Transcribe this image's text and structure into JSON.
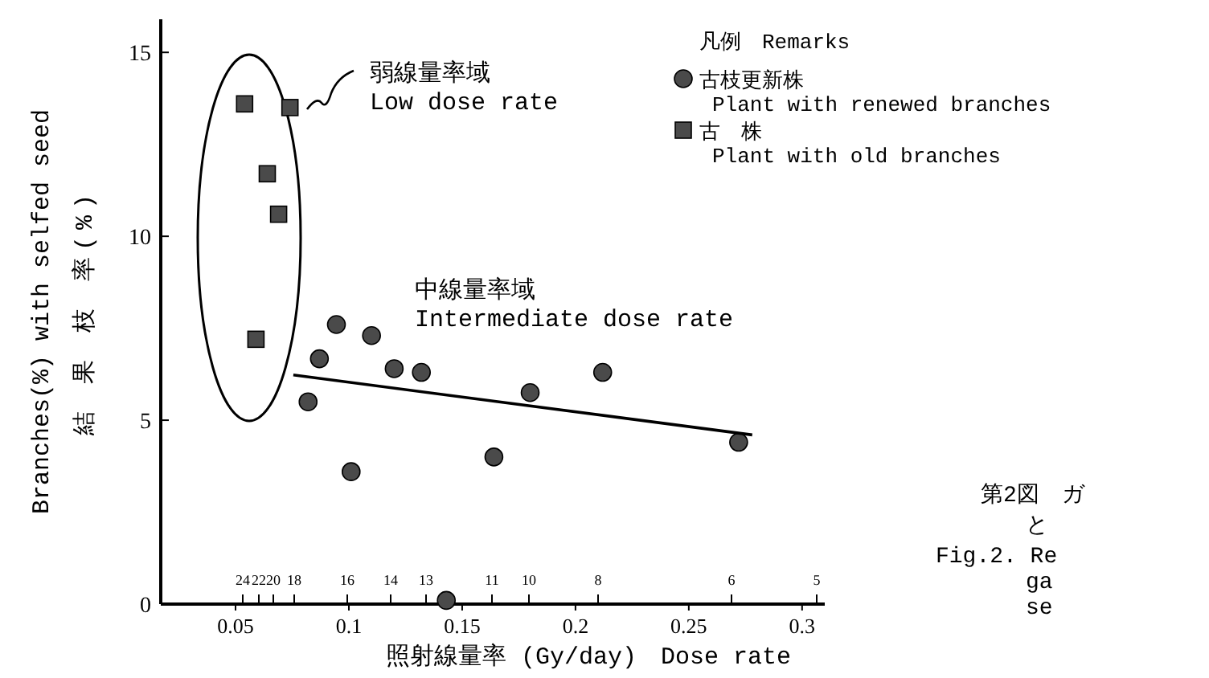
{
  "chart_data": {
    "type": "scatter",
    "xlabel": "照射線量率 (Gy/day)　Dose rate",
    "ylabel": "Branches(%) with selfed seed\n結 果 枝 率(%)",
    "legend_title": "凡例　Remarks",
    "legend": "top right",
    "grid": false,
    "xlim": [
      0.017,
      0.31
    ],
    "ylim": [
      0,
      15.9
    ],
    "xticks": [
      0.05,
      0.1,
      0.15,
      0.2,
      0.25,
      0.3
    ],
    "yticks": [
      0,
      5,
      10,
      15
    ],
    "series": [
      {
        "name": "古枝更新株\nPlant with renewed branches",
        "type": "scatter",
        "marker": "circle",
        "color": "#4a4a4a",
        "x": [
          0.082,
          0.087,
          0.0945,
          0.101,
          0.11,
          0.12,
          0.132,
          0.143,
          0.164,
          0.18,
          0.212,
          0.272
        ],
        "values": [
          5.5,
          6.67,
          7.6,
          3.6,
          7.3,
          6.4,
          6.3,
          0.1,
          4.0,
          5.75,
          6.3,
          4.4
        ]
      },
      {
        "name": "古　株\nPlant with old branches",
        "type": "scatter",
        "marker": "square",
        "color": "#4a4a4a",
        "x": [
          0.054,
          0.059,
          0.064,
          0.069,
          0.074
        ],
        "values": [
          13.6,
          7.2,
          11.7,
          10.6,
          13.5
        ]
      },
      {
        "type": "line",
        "color": "#000000",
        "line_style": "solid",
        "x": [
          0.0755,
          0.278
        ],
        "values": [
          6.23,
          4.6
        ]
      }
    ],
    "annotations": [
      "弱線量率域\nLow dose rate",
      "中線量率域\nIntermediate dose rate",
      "第2図　ガ",
      "と",
      "Fig.2.  Re",
      "ga",
      "se",
      "24",
      "22",
      "20",
      "18",
      "16",
      "14",
      "13",
      "11",
      "10",
      "8",
      "6",
      "5"
    ]
  }
}
